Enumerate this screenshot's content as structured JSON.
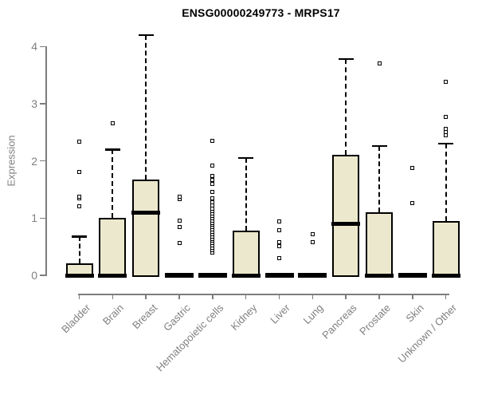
{
  "title": "ENSG00000249773 - MRPS17",
  "chart_data": {
    "type": "boxplot",
    "title": "ENSG00000249773 - MRPS17",
    "xlabel": "",
    "ylabel": "Expression",
    "ylim": [
      0,
      4.3
    ],
    "yticks": [
      0,
      1,
      2,
      3,
      4
    ],
    "grid": false,
    "legend": "none",
    "categories": [
      "Bladder",
      "Brain",
      "Breast",
      "Gastric",
      "Hematopoietic cells",
      "Kidney",
      "Liver",
      "Lung",
      "Pancreas",
      "Prostate",
      "Skin",
      "Unknown / Other"
    ],
    "series": [
      {
        "name": "Bladder",
        "q1": 0,
        "median": 0,
        "q3": 0.21,
        "whisker_low": 0,
        "whisker_high": 0.68,
        "outliers": [
          1.2,
          1.35,
          1.38,
          1.81,
          2.33
        ]
      },
      {
        "name": "Brain",
        "q1": 0,
        "median": 0,
        "q3": 1.0,
        "whisker_low": 0,
        "whisker_high": 2.2,
        "outliers": [
          2.66
        ]
      },
      {
        "name": "Breast",
        "q1": 0,
        "median": 1.1,
        "q3": 1.68,
        "whisker_low": 0,
        "whisker_high": 4.2,
        "outliers": []
      },
      {
        "name": "Gastric",
        "q1": 0,
        "median": 0,
        "q3": 0,
        "whisker_low": 0,
        "whisker_high": 0,
        "outliers": [
          0.56,
          0.84,
          0.95,
          1.33,
          1.38
        ]
      },
      {
        "name": "Hematopoietic cells",
        "q1": 0,
        "median": 0,
        "q3": 0,
        "whisker_low": 0,
        "whisker_high": 0,
        "outliers": [
          0.4,
          0.44,
          0.48,
          0.52,
          0.56,
          0.6,
          0.64,
          0.68,
          0.72,
          0.76,
          0.8,
          0.84,
          0.88,
          0.92,
          0.96,
          1.0,
          1.04,
          1.08,
          1.12,
          1.16,
          1.22,
          1.28,
          1.34,
          1.46,
          1.6,
          1.67,
          1.74,
          1.92,
          2.35
        ]
      },
      {
        "name": "Kidney",
        "q1": 0,
        "median": 0,
        "q3": 0.78,
        "whisker_low": 0,
        "whisker_high": 2.05,
        "outliers": []
      },
      {
        "name": "Liver",
        "q1": 0,
        "median": 0,
        "q3": 0,
        "whisker_low": 0,
        "whisker_high": 0,
        "outliers": [
          0.3,
          0.51,
          0.58,
          0.79,
          0.94
        ]
      },
      {
        "name": "Lung",
        "q1": 0,
        "median": 0,
        "q3": 0,
        "whisker_low": 0,
        "whisker_high": 0,
        "outliers": [
          0.58,
          0.72
        ]
      },
      {
        "name": "Pancreas",
        "q1": 0,
        "median": 0.9,
        "q3": 2.1,
        "whisker_low": 0,
        "whisker_high": 3.78,
        "outliers": []
      },
      {
        "name": "Prostate",
        "q1": 0,
        "median": 0,
        "q3": 1.1,
        "whisker_low": 0,
        "whisker_high": 2.26,
        "outliers": [
          3.7
        ]
      },
      {
        "name": "Skin",
        "q1": 0,
        "median": 0,
        "q3": 0,
        "whisker_low": 0,
        "whisker_high": 0,
        "outliers": [
          1.26,
          1.88
        ]
      },
      {
        "name": "Unknown / Other",
        "q1": 0,
        "median": 0,
        "q3": 0.95,
        "whisker_low": 0,
        "whisker_high": 2.3,
        "outliers": [
          2.45,
          2.5,
          2.56,
          2.77,
          3.39
        ]
      }
    ]
  },
  "style": {
    "box_fill": "#ece8cd",
    "box_border": "#000000",
    "median_color": "#000000",
    "axis_color": "#7d7d7d",
    "label_color": "#808080",
    "title_color": "#000000",
    "background": "#ffffff"
  }
}
